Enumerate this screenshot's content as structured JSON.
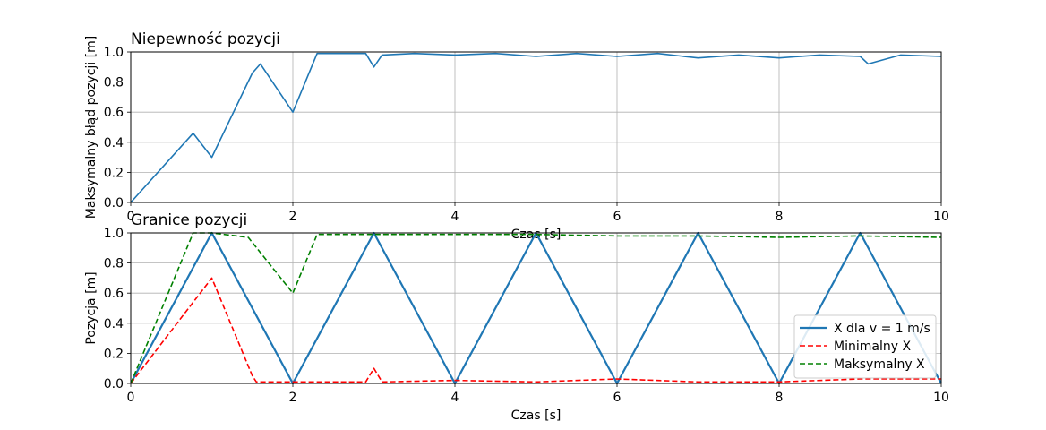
{
  "chart_data": [
    {
      "type": "line",
      "title": "Niepewność pozycji",
      "xlabel": "Czas [s]",
      "ylabel": "Maksymalny błąd pozycji [m]",
      "xlim": [
        0,
        10
      ],
      "ylim": [
        0,
        1
      ],
      "xticks": [
        0,
        2,
        4,
        6,
        8,
        10
      ],
      "yticks": [
        0.0,
        0.2,
        0.4,
        0.6,
        0.8,
        1.0
      ],
      "xtick_labels": [
        "0",
        "2",
        "4",
        "6",
        "8",
        "10"
      ],
      "ytick_labels": [
        "0.0",
        "0.2",
        "0.4",
        "0.6",
        "0.8",
        "1.0"
      ],
      "grid": true,
      "series": [
        {
          "color": "#1f77b4",
          "style": "solid",
          "x": [
            0,
            0.77,
            1.0,
            1.5,
            1.6,
            2.0,
            2.3,
            2.9,
            3.0,
            3.1,
            3.5,
            4.0,
            4.5,
            5.0,
            5.5,
            6.0,
            6.5,
            7.0,
            7.5,
            8.0,
            8.5,
            9.0,
            9.1,
            9.5,
            10.0
          ],
          "y": [
            0.0,
            0.46,
            0.3,
            0.86,
            0.92,
            0.6,
            0.99,
            0.99,
            0.9,
            0.98,
            0.99,
            0.98,
            0.99,
            0.97,
            0.99,
            0.97,
            0.99,
            0.96,
            0.98,
            0.96,
            0.98,
            0.97,
            0.92,
            0.98,
            0.97
          ]
        }
      ]
    },
    {
      "type": "line",
      "title": "Granice pozycji",
      "xlabel": "Czas [s]",
      "ylabel": "Pozycja [m]",
      "xlim": [
        0,
        10
      ],
      "ylim": [
        0,
        1
      ],
      "xticks": [
        0,
        2,
        4,
        6,
        8,
        10
      ],
      "yticks": [
        0.0,
        0.2,
        0.4,
        0.6,
        0.8,
        1.0
      ],
      "xtick_labels": [
        "0",
        "2",
        "4",
        "6",
        "8",
        "10"
      ],
      "ytick_labels": [
        "0.0",
        "0.2",
        "0.4",
        "0.6",
        "0.8",
        "1.0"
      ],
      "grid": true,
      "legend": "lower-right",
      "series": [
        {
          "name": "X dla v = 1 m/s",
          "color": "#1f77b4",
          "style": "solid",
          "x": [
            0,
            1,
            2,
            3,
            4,
            5,
            6,
            7,
            8,
            9,
            10
          ],
          "y": [
            0,
            1,
            0,
            1,
            0,
            1,
            0,
            1,
            0,
            1,
            0
          ]
        },
        {
          "name": "Minimalny X",
          "color": "#ff0000",
          "style": "dashed",
          "x": [
            0,
            1.0,
            1.5,
            1.55,
            2.0,
            2.9,
            3.0,
            3.1,
            4.0,
            5.0,
            6.0,
            7.0,
            8.0,
            9.0,
            10.0
          ],
          "y": [
            0,
            0.7,
            0.05,
            0.01,
            0.01,
            0.01,
            0.1,
            0.01,
            0.02,
            0.01,
            0.03,
            0.01,
            0.01,
            0.03,
            0.03
          ]
        },
        {
          "name": "Maksymalny X",
          "color": "#008000",
          "style": "dashed",
          "x": [
            0,
            0.77,
            1.0,
            1.45,
            2.0,
            2.3,
            3.0,
            4.0,
            5.0,
            6.0,
            7.0,
            8.0,
            9.0,
            10.0
          ],
          "y": [
            0,
            1.0,
            1.0,
            0.97,
            0.6,
            0.99,
            0.99,
            0.99,
            0.99,
            0.98,
            0.98,
            0.97,
            0.98,
            0.97
          ]
        }
      ]
    }
  ]
}
